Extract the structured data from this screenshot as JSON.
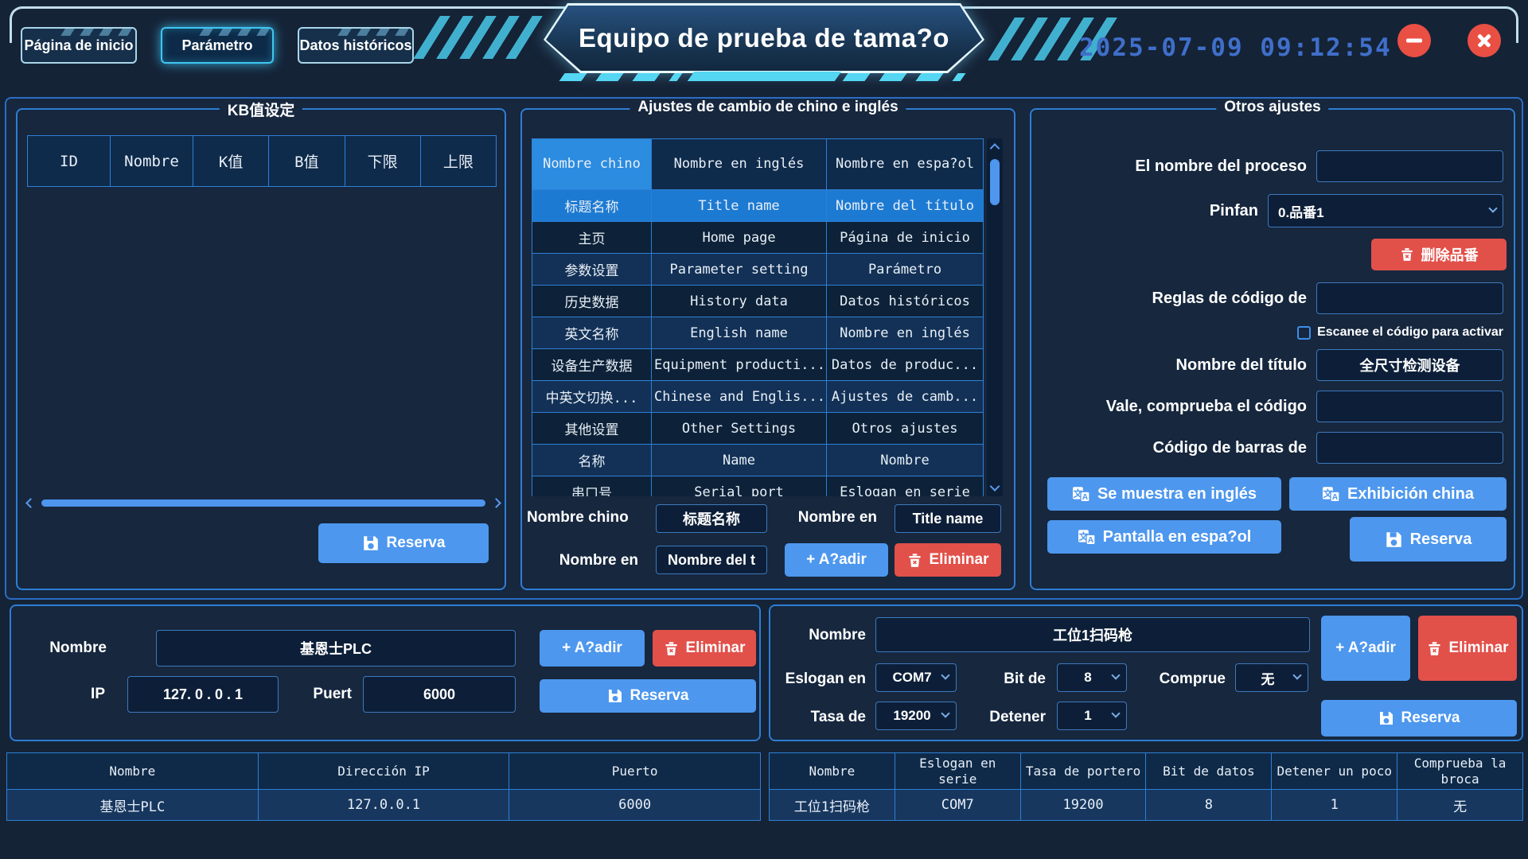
{
  "header": {
    "tabs": [
      {
        "label": "Página de inicio"
      },
      {
        "label": "Parámetro"
      },
      {
        "label": "Datos históricos"
      }
    ],
    "title": "Equipo de prueba de tama?o",
    "datetime": "2025-07-09 09:12:54"
  },
  "kb_panel": {
    "title": "KB值设定",
    "table_headers": [
      "ID",
      "Nombre",
      "K值",
      "B值",
      "下限",
      "上限"
    ],
    "save_label": "Reserva"
  },
  "lang_panel": {
    "title": "Ajustes de cambio de chino e inglés",
    "table_headers": [
      "Nombre chino",
      "Nombre en inglés",
      "Nombre en espa?ol"
    ],
    "rows": [
      [
        "标题名称",
        "Title name",
        "Nombre del título"
      ],
      [
        "主页",
        "Home page",
        "Página de inicio"
      ],
      [
        "参数设置",
        "Parameter setting",
        "Parámetro"
      ],
      [
        "历史数据",
        "History data",
        "Datos históricos"
      ],
      [
        "英文名称",
        "English name",
        "Nombre en inglés"
      ],
      [
        "设备生产数据",
        "Equipment producti...",
        "Datos de produc..."
      ],
      [
        "中英文切换...",
        "Chinese and Englis...",
        "Ajustes de camb..."
      ],
      [
        "其他设置",
        "Other Settings",
        "Otros ajustes"
      ],
      [
        "名称",
        "Name",
        "Nombre"
      ],
      [
        "串口号",
        "Serial port",
        "Eslogan en serie"
      ]
    ],
    "chinese_label": "Nombre chino",
    "chinese_value": "标题名称",
    "english_label": "Nombre en",
    "english_value": "Title name",
    "spanish_label": "Nombre en",
    "spanish_value": "Nombre del t",
    "add_label": "+ A?adir",
    "delete_label": "Eliminar"
  },
  "other_panel": {
    "title": "Otros ajustes",
    "process_label": "El nombre del proceso",
    "pinfan_label": "Pinfan",
    "pinfan_value": "0.品番1",
    "delete_pinfan_label": "删除品番",
    "code_rules_label": "Reglas de código de",
    "scan_checkbox_label": "Escanee el código para activar",
    "title_label": "Nombre del título",
    "title_value": "全尺寸检测设备",
    "check_code_label": "Vale, comprueba el código",
    "barcode_label": "Código de barras de",
    "english_display_label": "Se muestra en inglés",
    "chinese_display_label": "Exhibición china",
    "spanish_display_label": "Pantalla en espa?ol",
    "save_label": "Reserva"
  },
  "plc_panel": {
    "name_label": "Nombre",
    "name_value": "基恩士PLC",
    "ip_label": "IP",
    "ip_value": "127. 0 . 0 . 1",
    "port_label": "Puert",
    "port_value": "6000",
    "add_label": "+ A?adir",
    "delete_label": "Eliminar",
    "save_label": "Reserva"
  },
  "scanner_panel": {
    "name_label": "Nombre",
    "name_value": "工位1扫码枪",
    "serial_label": "Eslogan en",
    "serial_value": "COM7",
    "databits_label": "Bit de",
    "databits_value": "8",
    "parity_label": "Comprue",
    "parity_value": "无",
    "baud_label": "Tasa de",
    "baud_value": "19200",
    "stopbits_label": "Detener",
    "stopbits_value": "1",
    "add_label": "+ A?adir",
    "delete_label": "Eliminar",
    "save_label": "Reserva"
  },
  "plc_table": {
    "headers": [
      "Nombre",
      "Dirección IP",
      "Puerto"
    ],
    "rows": [
      [
        "基恩士PLC",
        "127.0.0.1",
        "6000"
      ]
    ]
  },
  "scanner_table": {
    "headers": [
      "Nombre",
      "Eslogan en serie",
      "Tasa de portero",
      "Bit de datos",
      "Detener un poco",
      "Comprueba la broca"
    ],
    "rows": [
      [
        "工位1扫码枪",
        "COM7",
        "19200",
        "8",
        "1",
        "无"
      ]
    ]
  },
  "colors": {
    "accent_blue_button": "#4d97ee",
    "accent_red_button": "#e2504a",
    "selected_row": "#1d7ad2",
    "highlight_header": "#2b8ce0",
    "panel_border": "#2e7ed4",
    "table_border": "#2e7fd6",
    "datetime_text": "#3f6fca",
    "banner_cyan": "#55d6f2",
    "background": "#152337"
  }
}
